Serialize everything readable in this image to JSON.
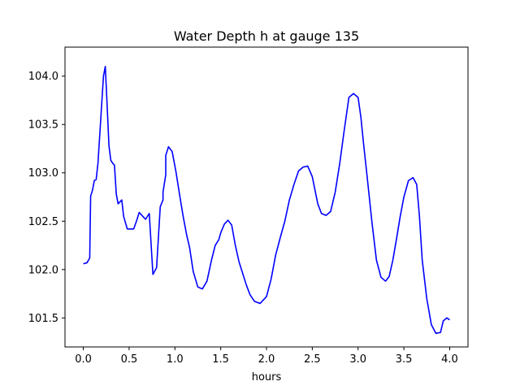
{
  "chart_data": {
    "type": "line",
    "title": "Water Depth h at gauge 135",
    "xlabel": "hours",
    "ylabel": "",
    "xlim": [
      -0.2,
      4.2
    ],
    "ylim": [
      101.2,
      104.3
    ],
    "xticks": [
      0.0,
      0.5,
      1.0,
      1.5,
      2.0,
      2.5,
      3.0,
      3.5,
      4.0
    ],
    "xtick_labels": [
      "0.0",
      "0.5",
      "1.0",
      "1.5",
      "2.0",
      "2.5",
      "3.0",
      "3.5",
      "4.0"
    ],
    "yticks": [
      101.5,
      102.0,
      102.5,
      103.0,
      103.5,
      104.0
    ],
    "ytick_labels": [
      "101.5",
      "102.0",
      "102.5",
      "103.0",
      "103.5",
      "104.0"
    ],
    "grid": false,
    "line_color": "#0000ff",
    "series": [
      {
        "x": [
          0.0,
          0.04,
          0.07,
          0.08,
          0.08,
          0.1,
          0.12,
          0.14,
          0.16,
          0.18,
          0.2,
          0.22,
          0.24,
          0.26,
          0.28,
          0.3,
          0.32,
          0.34,
          0.36,
          0.38,
          0.4,
          0.42,
          0.44,
          0.48,
          0.52,
          0.55,
          0.58,
          0.61,
          0.65,
          0.68,
          0.72,
          0.76,
          0.8,
          0.84,
          0.87,
          0.87,
          0.9,
          0.9,
          0.93,
          0.97,
          1.01,
          1.05,
          1.09,
          1.11,
          1.13,
          1.16,
          1.2,
          1.25,
          1.3,
          1.35,
          1.4,
          1.44,
          1.48,
          1.5,
          1.54,
          1.58,
          1.62,
          1.66,
          1.7,
          1.74,
          1.78,
          1.82,
          1.87,
          1.93,
          2.0,
          2.05,
          2.1,
          2.15,
          2.2,
          2.25,
          2.3,
          2.35,
          2.4,
          2.45,
          2.5,
          2.53,
          2.56,
          2.6,
          2.65,
          2.7,
          2.75,
          2.8,
          2.85,
          2.9,
          2.95,
          3.0,
          3.03,
          3.06,
          3.1,
          3.15,
          3.2,
          3.25,
          3.3,
          3.34,
          3.38,
          3.42,
          3.46,
          3.5,
          3.55,
          3.6,
          3.64,
          3.67,
          3.7,
          3.75,
          3.8,
          3.85,
          3.9,
          3.93,
          3.97,
          4.0
        ],
        "y": [
          102.06,
          102.07,
          102.12,
          102.76,
          102.76,
          102.82,
          102.92,
          102.93,
          103.1,
          103.4,
          103.7,
          104.0,
          104.1,
          103.7,
          103.28,
          103.13,
          103.1,
          103.08,
          102.78,
          102.68,
          102.7,
          102.72,
          102.55,
          102.42,
          102.42,
          102.42,
          102.5,
          102.59,
          102.55,
          102.52,
          102.58,
          101.95,
          102.02,
          102.65,
          102.72,
          102.8,
          102.98,
          103.18,
          103.27,
          103.22,
          103.02,
          102.78,
          102.55,
          102.45,
          102.35,
          102.23,
          101.98,
          101.82,
          101.8,
          101.88,
          102.1,
          102.25,
          102.31,
          102.38,
          102.47,
          102.51,
          102.46,
          102.25,
          102.08,
          101.96,
          101.84,
          101.74,
          101.67,
          101.65,
          101.72,
          101.9,
          102.15,
          102.33,
          102.5,
          102.72,
          102.88,
          103.02,
          103.06,
          103.07,
          102.96,
          102.82,
          102.68,
          102.58,
          102.56,
          102.6,
          102.8,
          103.1,
          103.45,
          103.78,
          103.82,
          103.78,
          103.58,
          103.3,
          102.95,
          102.5,
          102.1,
          101.92,
          101.88,
          101.93,
          102.1,
          102.32,
          102.55,
          102.75,
          102.92,
          102.95,
          102.88,
          102.55,
          102.1,
          101.7,
          101.43,
          101.34,
          101.35,
          101.47,
          101.5,
          101.48
        ]
      }
    ]
  }
}
